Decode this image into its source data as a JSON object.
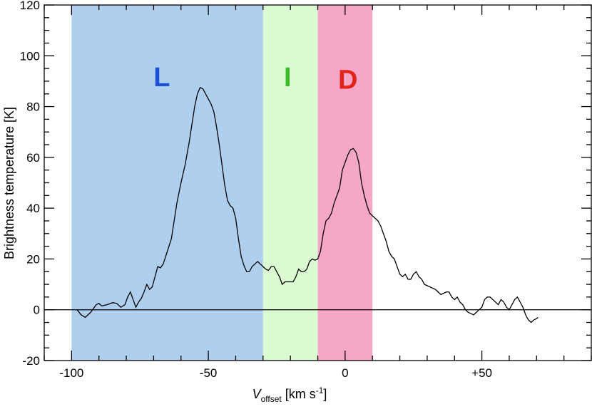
{
  "chart_data": {
    "type": "line",
    "xlabel": {
      "main": "V",
      "sub": "offset",
      "units": " [km s",
      "exp": "-1",
      "close": "]"
    },
    "ylabel": "Brightness temperature [K]",
    "xlim": [
      -110,
      90
    ],
    "ylim": [
      -20,
      120
    ],
    "xticks": [
      {
        "value": -100,
        "label": "-100"
      },
      {
        "value": -50,
        "label": "-50"
      },
      {
        "value": 0,
        "label": "0"
      },
      {
        "value": 50,
        "label": "+50"
      }
    ],
    "yticks": [
      {
        "value": -20,
        "label": "-20"
      },
      {
        "value": 0,
        "label": "0"
      },
      {
        "value": 20,
        "label": "20"
      },
      {
        "value": 40,
        "label": "40"
      },
      {
        "value": 60,
        "label": "60"
      },
      {
        "value": 80,
        "label": "80"
      },
      {
        "value": 100,
        "label": "100"
      },
      {
        "value": 120,
        "label": "120"
      }
    ],
    "x_minor_step": 10,
    "y_minor_step": 5,
    "zero_line": 0,
    "regions": [
      {
        "label": "L",
        "x0": -100,
        "x1": -30,
        "fill": "#afcfee",
        "label_color": "#1a4fd6",
        "label_x": -67,
        "label_y": 88
      },
      {
        "label": "I",
        "x0": -30,
        "x1": -10,
        "fill": "#dbfcd2",
        "label_color": "#3cbd2c",
        "label_x": -21,
        "label_y": 88
      },
      {
        "label": "D",
        "x0": -10,
        "x1": 10,
        "fill": "#f6a7c8",
        "label_color": "#e2231a",
        "label_x": 1,
        "label_y": 87
      }
    ],
    "series": [
      {
        "line_color": "#000000",
        "points": [
          [
            -98,
            0
          ],
          [
            -96.5,
            -2
          ],
          [
            -95,
            -3
          ],
          [
            -93,
            -1
          ],
          [
            -91,
            2
          ],
          [
            -90,
            2.5
          ],
          [
            -89,
            1.5
          ],
          [
            -87,
            2
          ],
          [
            -85,
            2.8
          ],
          [
            -83.5,
            2.5
          ],
          [
            -82,
            1
          ],
          [
            -80.5,
            2
          ],
          [
            -79.5,
            5
          ],
          [
            -78.5,
            7
          ],
          [
            -77.5,
            4
          ],
          [
            -76.5,
            1
          ],
          [
            -75.5,
            3
          ],
          [
            -74.5,
            4.5
          ],
          [
            -73.5,
            7
          ],
          [
            -72.5,
            10
          ],
          [
            -71.5,
            8
          ],
          [
            -70.5,
            9
          ],
          [
            -69.5,
            13
          ],
          [
            -68.5,
            17
          ],
          [
            -67.5,
            16.5
          ],
          [
            -66.5,
            18
          ],
          [
            -65,
            23
          ],
          [
            -63.5,
            28
          ],
          [
            -62.5,
            35
          ],
          [
            -61.5,
            42
          ],
          [
            -60,
            50
          ],
          [
            -58.5,
            57
          ],
          [
            -57,
            66
          ],
          [
            -56,
            73
          ],
          [
            -55,
            80
          ],
          [
            -54,
            85
          ],
          [
            -53,
            87.5
          ],
          [
            -52,
            87
          ],
          [
            -51,
            85
          ],
          [
            -50,
            83
          ],
          [
            -49,
            81
          ],
          [
            -48,
            78
          ],
          [
            -47,
            72
          ],
          [
            -46,
            65
          ],
          [
            -45,
            57
          ],
          [
            -44,
            49
          ],
          [
            -43,
            43
          ],
          [
            -42,
            41
          ],
          [
            -41,
            40
          ],
          [
            -40,
            36
          ],
          [
            -39,
            28
          ],
          [
            -38,
            21
          ],
          [
            -37,
            17.5
          ],
          [
            -36,
            15
          ],
          [
            -35,
            15
          ],
          [
            -34,
            17
          ],
          [
            -33,
            18
          ],
          [
            -32,
            19
          ],
          [
            -31,
            18
          ],
          [
            -30,
            17
          ],
          [
            -29,
            16
          ],
          [
            -28,
            15.5
          ],
          [
            -27,
            17
          ],
          [
            -26,
            17
          ],
          [
            -25,
            15
          ],
          [
            -24,
            13
          ],
          [
            -23,
            10
          ],
          [
            -22,
            11
          ],
          [
            -21,
            11
          ],
          [
            -19,
            11
          ],
          [
            -18,
            13
          ],
          [
            -17,
            16
          ],
          [
            -16,
            15
          ],
          [
            -15,
            15
          ],
          [
            -14,
            16
          ],
          [
            -13,
            19
          ],
          [
            -12,
            20
          ],
          [
            -11,
            19.5
          ],
          [
            -10,
            20
          ],
          [
            -9,
            23
          ],
          [
            -8,
            30
          ],
          [
            -7,
            35
          ],
          [
            -6,
            36
          ],
          [
            -5,
            38
          ],
          [
            -4,
            42
          ],
          [
            -3,
            45
          ],
          [
            -2,
            48
          ],
          [
            -1,
            55
          ],
          [
            0,
            58
          ],
          [
            1,
            61
          ],
          [
            2,
            63
          ],
          [
            3,
            63.5
          ],
          [
            4,
            62
          ],
          [
            5,
            58
          ],
          [
            6,
            50
          ],
          [
            7,
            45
          ],
          [
            8,
            41
          ],
          [
            9,
            38
          ],
          [
            10,
            37
          ],
          [
            11,
            36
          ],
          [
            12,
            35
          ],
          [
            13,
            33
          ],
          [
            14,
            30
          ],
          [
            15,
            27
          ],
          [
            16,
            23
          ],
          [
            17,
            21
          ],
          [
            18,
            20
          ],
          [
            19,
            17
          ],
          [
            20,
            14
          ],
          [
            21,
            13
          ],
          [
            22,
            14
          ],
          [
            23,
            12
          ],
          [
            24,
            12
          ],
          [
            25,
            14
          ],
          [
            26,
            15
          ],
          [
            27,
            13
          ],
          [
            28,
            12
          ],
          [
            29,
            10
          ],
          [
            30,
            9.5
          ],
          [
            31,
            9
          ],
          [
            32,
            8.5
          ],
          [
            33,
            8
          ],
          [
            34,
            7
          ],
          [
            35,
            6
          ],
          [
            36,
            6.5
          ],
          [
            37,
            7
          ],
          [
            38,
            7
          ],
          [
            39,
            5
          ],
          [
            40,
            4
          ],
          [
            41,
            5
          ],
          [
            42,
            3
          ],
          [
            43,
            2
          ],
          [
            44,
            0
          ],
          [
            45,
            -1
          ],
          [
            46,
            -1.5
          ],
          [
            47,
            -2
          ],
          [
            48,
            -1
          ],
          [
            49,
            0
          ],
          [
            50,
            1
          ],
          [
            51,
            4
          ],
          [
            52,
            5
          ],
          [
            53,
            5
          ],
          [
            54,
            4
          ],
          [
            55,
            3
          ],
          [
            56,
            2
          ],
          [
            57,
            4
          ],
          [
            58,
            3
          ],
          [
            59,
            1
          ],
          [
            60,
            0
          ],
          [
            61,
            2
          ],
          [
            62,
            4
          ],
          [
            63,
            5
          ],
          [
            64,
            3
          ],
          [
            65,
            1
          ],
          [
            66,
            -2
          ],
          [
            67,
            -4
          ],
          [
            68,
            -5
          ],
          [
            69,
            -4
          ],
          [
            70,
            -3.5
          ],
          [
            70.5,
            -3
          ]
        ]
      }
    ]
  }
}
